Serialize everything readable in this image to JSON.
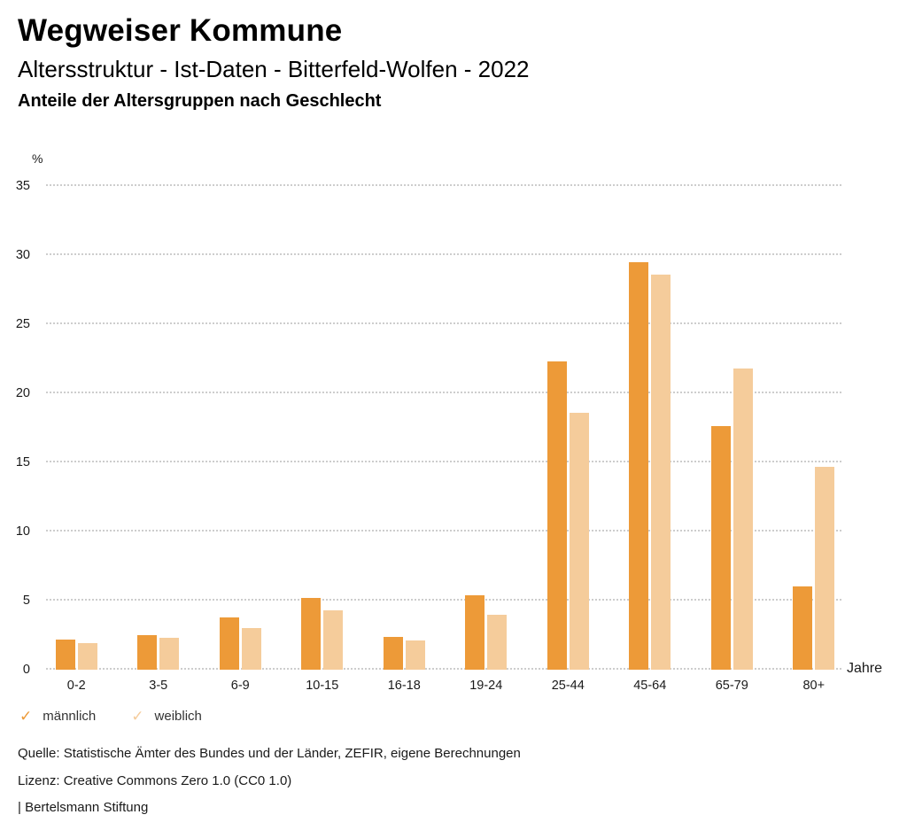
{
  "header": {
    "title": "Wegweiser Kommune",
    "subtitle": "Altersstruktur - Ist-Daten - Bitterfeld-Wolfen - 2022",
    "subheading": "Anteile der Altersgruppen nach Geschlecht"
  },
  "chart_data": {
    "type": "bar",
    "title": "Anteile der Altersgruppen nach Geschlecht",
    "categories": [
      "0-2",
      "3-5",
      "6-9",
      "10-15",
      "16-18",
      "19-24",
      "25-44",
      "45-64",
      "65-79",
      "80+"
    ],
    "series": [
      {
        "name": "männlich",
        "color": "#ED9A38",
        "values": [
          2.2,
          2.5,
          3.8,
          5.2,
          2.4,
          5.4,
          22.3,
          29.5,
          17.6,
          6.0
        ]
      },
      {
        "name": "weiblich",
        "color": "#F5CC9B",
        "values": [
          1.9,
          2.3,
          3.0,
          4.3,
          2.1,
          4.0,
          18.6,
          28.6,
          21.8,
          14.7
        ]
      }
    ],
    "ylabel": "%",
    "xlabel": "Jahre",
    "ylim": [
      0,
      35
    ],
    "ytick_step": 5,
    "yticks": [
      0,
      5,
      10,
      15,
      20,
      25,
      30,
      35
    ],
    "grid": "horizontal-dotted",
    "legend_position": "bottom-left"
  },
  "legend": {
    "check_icon": "✓"
  },
  "footer": {
    "source": "Quelle: Statistische Ämter des Bundes und der Länder, ZEFIR, eigene Berechnungen",
    "license": "Lizenz: Creative Commons Zero 1.0 (CC0 1.0)",
    "attribution": "| Bertelsmann Stiftung"
  },
  "colors": {
    "bar_maennlich": "#ED9A38",
    "bar_weiblich": "#F5CC9B",
    "gridline": "#CDCDCD",
    "text": "#1A1A1A"
  }
}
